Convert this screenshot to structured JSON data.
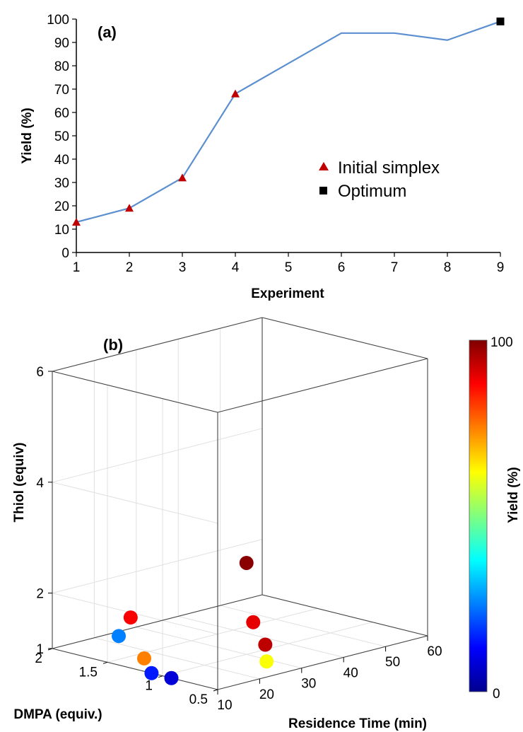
{
  "chart_data": [
    {
      "type": "line",
      "panel_label": "(a)",
      "xlabel": "Experiment",
      "ylabel": "Yield (%)",
      "xlim": [
        1,
        9
      ],
      "ylim": [
        0,
        100
      ],
      "x_ticks": [
        1,
        2,
        3,
        4,
        5,
        6,
        7,
        8,
        9
      ],
      "y_ticks": [
        0,
        10,
        20,
        30,
        40,
        50,
        60,
        70,
        80,
        90,
        100
      ],
      "grid": false,
      "legend_position": "center-right",
      "line_color": "#5b8fd0",
      "series": [
        {
          "x": [
            1,
            2,
            3,
            4,
            5,
            6,
            7,
            8,
            9
          ],
          "y": [
            13,
            19,
            32,
            68,
            81,
            94,
            94,
            91,
            99
          ]
        }
      ],
      "markers": [
        {
          "name": "Initial simplex",
          "symbol": "triangle",
          "color": "#c00000",
          "x": [
            1,
            2,
            3,
            4
          ],
          "y": [
            13,
            19,
            32,
            68
          ]
        },
        {
          "name": "Optimum",
          "symbol": "square",
          "color": "#000000",
          "x": [
            9
          ],
          "y": [
            99
          ]
        }
      ]
    },
    {
      "type": "scatter3d",
      "panel_label": "(b)",
      "xlabel": "Residence Time (min)",
      "ylabel": "DMPA (equiv.)",
      "zlabel": "Thiol (equiv)",
      "xlim": [
        10,
        60
      ],
      "ylim": [
        0.5,
        2
      ],
      "zlim": [
        1,
        6
      ],
      "x_ticks": [
        10,
        20,
        30,
        40,
        50,
        60
      ],
      "y_ticks": [
        "0.5",
        "1",
        "1.5",
        "2"
      ],
      "z_ticks": [
        1,
        2,
        4,
        6
      ],
      "grid": true,
      "colorbar": {
        "label": "Yield (%)",
        "min_label": "0",
        "max_label": "100",
        "colormap": "jet"
      },
      "points": [
        {
          "x": 10.6,
          "y": 1.42,
          "z": 1.5,
          "yield": 25
        },
        {
          "x": 10.0,
          "y": 1.1,
          "z": 1.0,
          "yield": 15
        },
        {
          "x": 10.0,
          "y": 0.92,
          "z": 1.0,
          "yield": 8
        },
        {
          "x": 29.0,
          "y": 0.78,
          "z": 1.0,
          "yield": 62
        },
        {
          "x": 13.5,
          "y": 1.3,
          "z": 1.1,
          "yield": 75
        },
        {
          "x": 12.9,
          "y": 1.4,
          "z": 1.8,
          "yield": 88
        },
        {
          "x": 22.4,
          "y": 0.65,
          "z": 1.9,
          "yield": 90
        },
        {
          "x": 23.7,
          "y": 0.59,
          "z": 1.5,
          "yield": 94
        },
        {
          "x": 20.8,
          "y": 0.65,
          "z": 3.0,
          "yield": 99
        }
      ]
    }
  ]
}
